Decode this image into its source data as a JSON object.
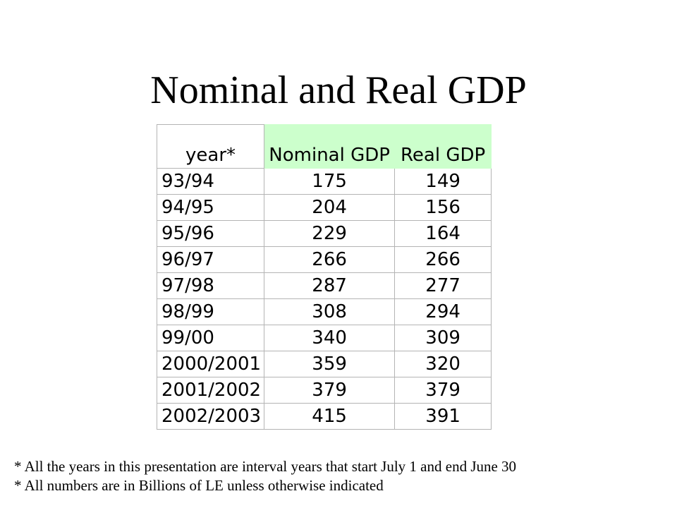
{
  "slide": {
    "title": "Nominal and Real GDP"
  },
  "table": {
    "headers": {
      "year": "year*",
      "nominal": "Nominal GDP",
      "real": "Real GDP"
    },
    "rows": [
      {
        "year": "93/94",
        "nominal": "175",
        "real": "149"
      },
      {
        "year": "94/95",
        "nominal": "204",
        "real": "156"
      },
      {
        "year": "95/96",
        "nominal": "229",
        "real": "164"
      },
      {
        "year": "96/97",
        "nominal": "266",
        "real": "266"
      },
      {
        "year": "97/98",
        "nominal": "287",
        "real": "277"
      },
      {
        "year": "98/99",
        "nominal": "308",
        "real": "294"
      },
      {
        "year": "99/00",
        "nominal": "340",
        "real": "309"
      },
      {
        "year": "2000/2001",
        "nominal": "359",
        "real": "320"
      },
      {
        "year": "2001/2002",
        "nominal": "379",
        "real": "379"
      },
      {
        "year": "2002/2003",
        "nominal": "415",
        "real": "391"
      }
    ],
    "header_highlight_color": "#ccffcc"
  },
  "footnotes": [
    "* All the years in this presentation are interval years that start July 1 and end June 30",
    "* All numbers are in Billions of LE unless otherwise indicated"
  ]
}
